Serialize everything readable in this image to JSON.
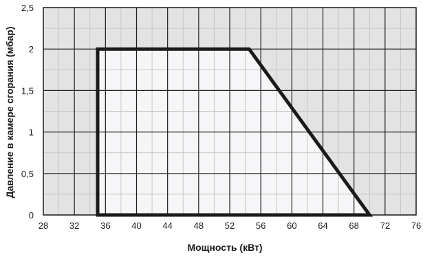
{
  "chart_data": {
    "type": "area",
    "title": "",
    "xlabel": "Мощность (кВт)",
    "ylabel": "Давление в камере сгорания (мбар)",
    "xlim": [
      28,
      76
    ],
    "ylim": [
      0,
      2.5
    ],
    "x_ticks": [
      28,
      32,
      36,
      40,
      44,
      48,
      52,
      56,
      60,
      64,
      68,
      72,
      76
    ],
    "x_tick_labels": [
      "28",
      "32",
      "36",
      "40",
      "44",
      "48",
      "52",
      "56",
      "60",
      "64",
      "68",
      "72",
      "76"
    ],
    "y_ticks": [
      0,
      0.5,
      1,
      1.5,
      2,
      2.5
    ],
    "y_tick_labels": [
      "0",
      "0,5",
      "1",
      "1,5",
      "2",
      "2,5"
    ],
    "grid": true,
    "x_minor_step": 2,
    "series": [
      {
        "x": [
          35,
          35,
          54.5,
          70,
          35
        ],
        "y": [
          0,
          2,
          2,
          0,
          0
        ]
      }
    ],
    "colors": {
      "plot_background": "#e3e3e3",
      "area_fill": "#f6f6f8",
      "grid_major": "#1e1e1e",
      "grid_minor": "#c6c6c6",
      "outline": "#1a1a1a"
    }
  }
}
